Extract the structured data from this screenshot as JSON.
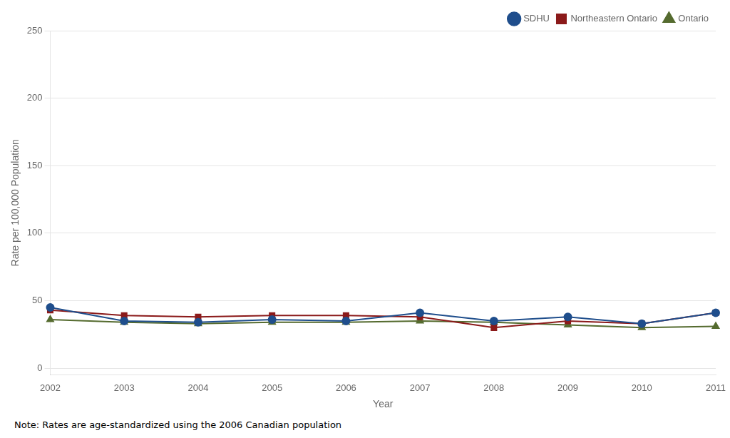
{
  "chart_data": {
    "type": "line",
    "xlabel": "Year",
    "ylabel": "Rate per 100,000 Population",
    "note": "Note: Rates are age-standardized using the 2006 Canadian population",
    "categories": [
      "2002",
      "2003",
      "2004",
      "2005",
      "2006",
      "2007",
      "2008",
      "2009",
      "2010",
      "2011"
    ],
    "series": [
      {
        "name": "SDHU",
        "color": "#1f4e8c",
        "marker": "circle",
        "values": [
          45,
          35,
          34,
          36,
          35,
          41,
          35,
          38,
          33,
          41
        ]
      },
      {
        "name": "Northeastern Ontario",
        "color": "#8b1a1a",
        "marker": "square",
        "values": [
          43,
          39,
          38,
          39,
          39,
          38,
          30,
          35,
          33,
          41
        ]
      },
      {
        "name": "Ontario",
        "color": "#556b2f",
        "marker": "triangle",
        "values": [
          36,
          34,
          33,
          34,
          34,
          35,
          34,
          32,
          30,
          31
        ]
      }
    ],
    "ylim": [
      -5,
      250
    ],
    "yticks": [
      0,
      50,
      100,
      150,
      200,
      250
    ],
    "grid": "y",
    "legend": "upper right"
  }
}
